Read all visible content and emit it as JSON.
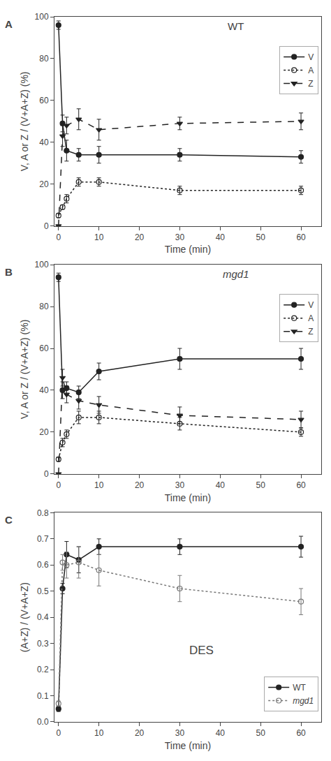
{
  "chart_data": [
    {
      "type": "line",
      "title": "WT",
      "annotations": [
        "A"
      ],
      "xlabel": "Time (min)",
      "ylabel": "V, A or Z / (V+A+Z) (%)",
      "xlim": [
        -1,
        65
      ],
      "xticks": [
        0,
        10,
        20,
        30,
        40,
        50,
        60
      ],
      "ylim": [
        0,
        100
      ],
      "yticks": [
        0,
        20,
        40,
        60,
        80,
        100
      ],
      "grid": false,
      "legend": "upper right",
      "series": [
        {
          "name": "V",
          "x": [
            0,
            1,
            2,
            5,
            10,
            30,
            60
          ],
          "values": [
            96,
            49,
            36,
            34,
            34,
            34,
            33
          ],
          "errors": [
            2,
            4,
            5,
            3,
            4,
            3,
            3
          ],
          "line_style": "solid",
          "marker": "circle",
          "color": "#222222"
        },
        {
          "name": "A",
          "x": [
            0,
            1,
            2,
            5,
            10,
            30,
            60
          ],
          "values": [
            5,
            9,
            13,
            21,
            21,
            17,
            17
          ],
          "errors": [
            1,
            1,
            2,
            2,
            2,
            2,
            2
          ],
          "line_style": "dot",
          "marker": "circle-open",
          "color": "#222222"
        },
        {
          "name": "Z",
          "x": [
            0,
            1,
            2,
            5,
            10,
            30,
            60
          ],
          "values": [
            0,
            43,
            48,
            51,
            46,
            49,
            50
          ],
          "errors": [
            0,
            5,
            4,
            5,
            5,
            3,
            4
          ],
          "line_style": "dash",
          "marker": "triangle-down",
          "color": "#222222"
        }
      ]
    },
    {
      "type": "line",
      "title": "mgd1",
      "annotations": [
        "B"
      ],
      "xlabel": "Time (min)",
      "ylabel": "V, A or Z / (V+A+Z) (%)",
      "xlim": [
        -1,
        65
      ],
      "xticks": [
        0,
        10,
        20,
        30,
        40,
        50,
        60
      ],
      "ylim": [
        0,
        100
      ],
      "yticks": [
        0,
        20,
        40,
        60,
        80,
        100
      ],
      "grid": false,
      "legend": "upper right",
      "series": [
        {
          "name": "V",
          "x": [
            0,
            1,
            2,
            5,
            10,
            30,
            60
          ],
          "values": [
            94,
            40,
            41,
            39,
            49,
            55,
            55
          ],
          "errors": [
            2,
            4,
            3,
            3,
            4,
            5,
            5
          ],
          "line_style": "solid",
          "marker": "circle",
          "color": "#222222"
        },
        {
          "name": "A",
          "x": [
            0,
            1,
            2,
            5,
            10,
            30,
            60
          ],
          "values": [
            7,
            15,
            19,
            27,
            27,
            24,
            20
          ],
          "errors": [
            1,
            2,
            2,
            3,
            3,
            3,
            2
          ],
          "line_style": "dot",
          "marker": "circle-open",
          "color": "#222222"
        },
        {
          "name": "Z",
          "x": [
            0,
            1,
            2,
            5,
            10,
            30,
            60
          ],
          "values": [
            0,
            46,
            38,
            35,
            33,
            28,
            26
          ],
          "errors": [
            0,
            4,
            4,
            4,
            4,
            4,
            4
          ],
          "line_style": "dash",
          "marker": "triangle-down",
          "color": "#222222"
        }
      ]
    },
    {
      "type": "line",
      "title": "DES",
      "annotations": [
        "C"
      ],
      "xlabel": "Time (min)",
      "ylabel": "(A+Z) / (V+A+Z)",
      "xlim": [
        -1,
        65
      ],
      "xticks": [
        0,
        10,
        20,
        30,
        40,
        50,
        60
      ],
      "ylim": [
        0.0,
        0.8
      ],
      "yticks": [
        {
          "value": 0.0,
          "label": "0.0"
        },
        0.1,
        0.2,
        0.3,
        0.4,
        0.5,
        0.6,
        0.7,
        0.8
      ],
      "grid": false,
      "legend": "lower right",
      "series": [
        {
          "name": "WT",
          "x": [
            0,
            1,
            2,
            5,
            10,
            30,
            60
          ],
          "values": [
            0.05,
            0.51,
            0.64,
            0.62,
            0.67,
            0.67,
            0.67
          ],
          "errors": [
            0.01,
            0.02,
            0.05,
            0.05,
            0.03,
            0.03,
            0.04
          ],
          "line_style": "solid",
          "marker": "circle",
          "color": "#222222"
        },
        {
          "name": "mgd1",
          "x": [
            0,
            1,
            2,
            5,
            10,
            30,
            60
          ],
          "values": [
            0.07,
            0.61,
            0.6,
            0.61,
            0.58,
            0.51,
            0.46
          ],
          "errors": [
            0.01,
            0.03,
            0.05,
            0.06,
            0.06,
            0.05,
            0.05
          ],
          "line_style": "dot",
          "marker": "circle-open",
          "color": "#777777"
        }
      ]
    }
  ]
}
